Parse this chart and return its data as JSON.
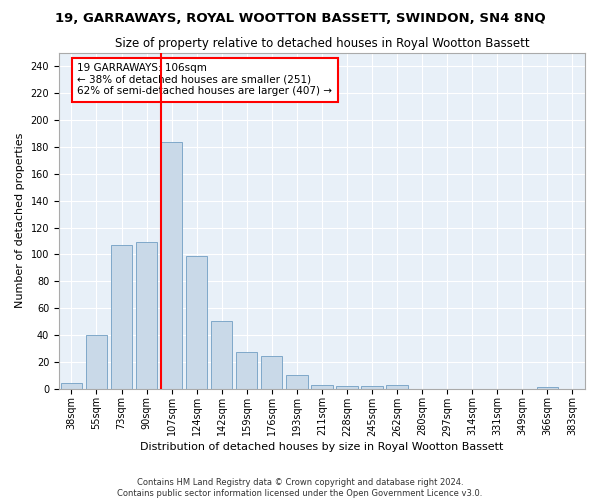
{
  "title1": "19, GARRAWAYS, ROYAL WOOTTON BASSETT, SWINDON, SN4 8NQ",
  "title2": "Size of property relative to detached houses in Royal Wootton Bassett",
  "xlabel": "Distribution of detached houses by size in Royal Wootton Bassett",
  "ylabel": "Number of detached properties",
  "footnote1": "Contains HM Land Registry data © Crown copyright and database right 2024.",
  "footnote2": "Contains public sector information licensed under the Open Government Licence v3.0.",
  "categories": [
    "38sqm",
    "55sqm",
    "73sqm",
    "90sqm",
    "107sqm",
    "124sqm",
    "142sqm",
    "159sqm",
    "176sqm",
    "193sqm",
    "211sqm",
    "228sqm",
    "245sqm",
    "262sqm",
    "280sqm",
    "297sqm",
    "314sqm",
    "331sqm",
    "349sqm",
    "366sqm",
    "383sqm"
  ],
  "values": [
    4,
    40,
    107,
    109,
    184,
    99,
    50,
    27,
    24,
    10,
    3,
    2,
    2,
    3,
    0,
    0,
    0,
    0,
    0,
    1,
    0
  ],
  "bar_color": "#c9d9e8",
  "bar_edge_color": "#7fa8c9",
  "vline_color": "red",
  "vline_position": 3.575,
  "annotation_line1": "19 GARRAWAYS: 106sqm",
  "annotation_line2": "← 38% of detached houses are smaller (251)",
  "annotation_line3": "62% of semi-detached houses are larger (407) →",
  "annotation_box_color": "white",
  "annotation_box_edge": "red",
  "ylim": [
    0,
    250
  ],
  "yticks": [
    0,
    20,
    40,
    60,
    80,
    100,
    120,
    140,
    160,
    180,
    200,
    220,
    240
  ],
  "background_color": "#e8f0f8",
  "grid_color": "white",
  "title1_fontsize": 9.5,
  "title2_fontsize": 8.5,
  "xlabel_fontsize": 8,
  "ylabel_fontsize": 8,
  "tick_fontsize": 7,
  "annotation_fontsize": 7.5
}
